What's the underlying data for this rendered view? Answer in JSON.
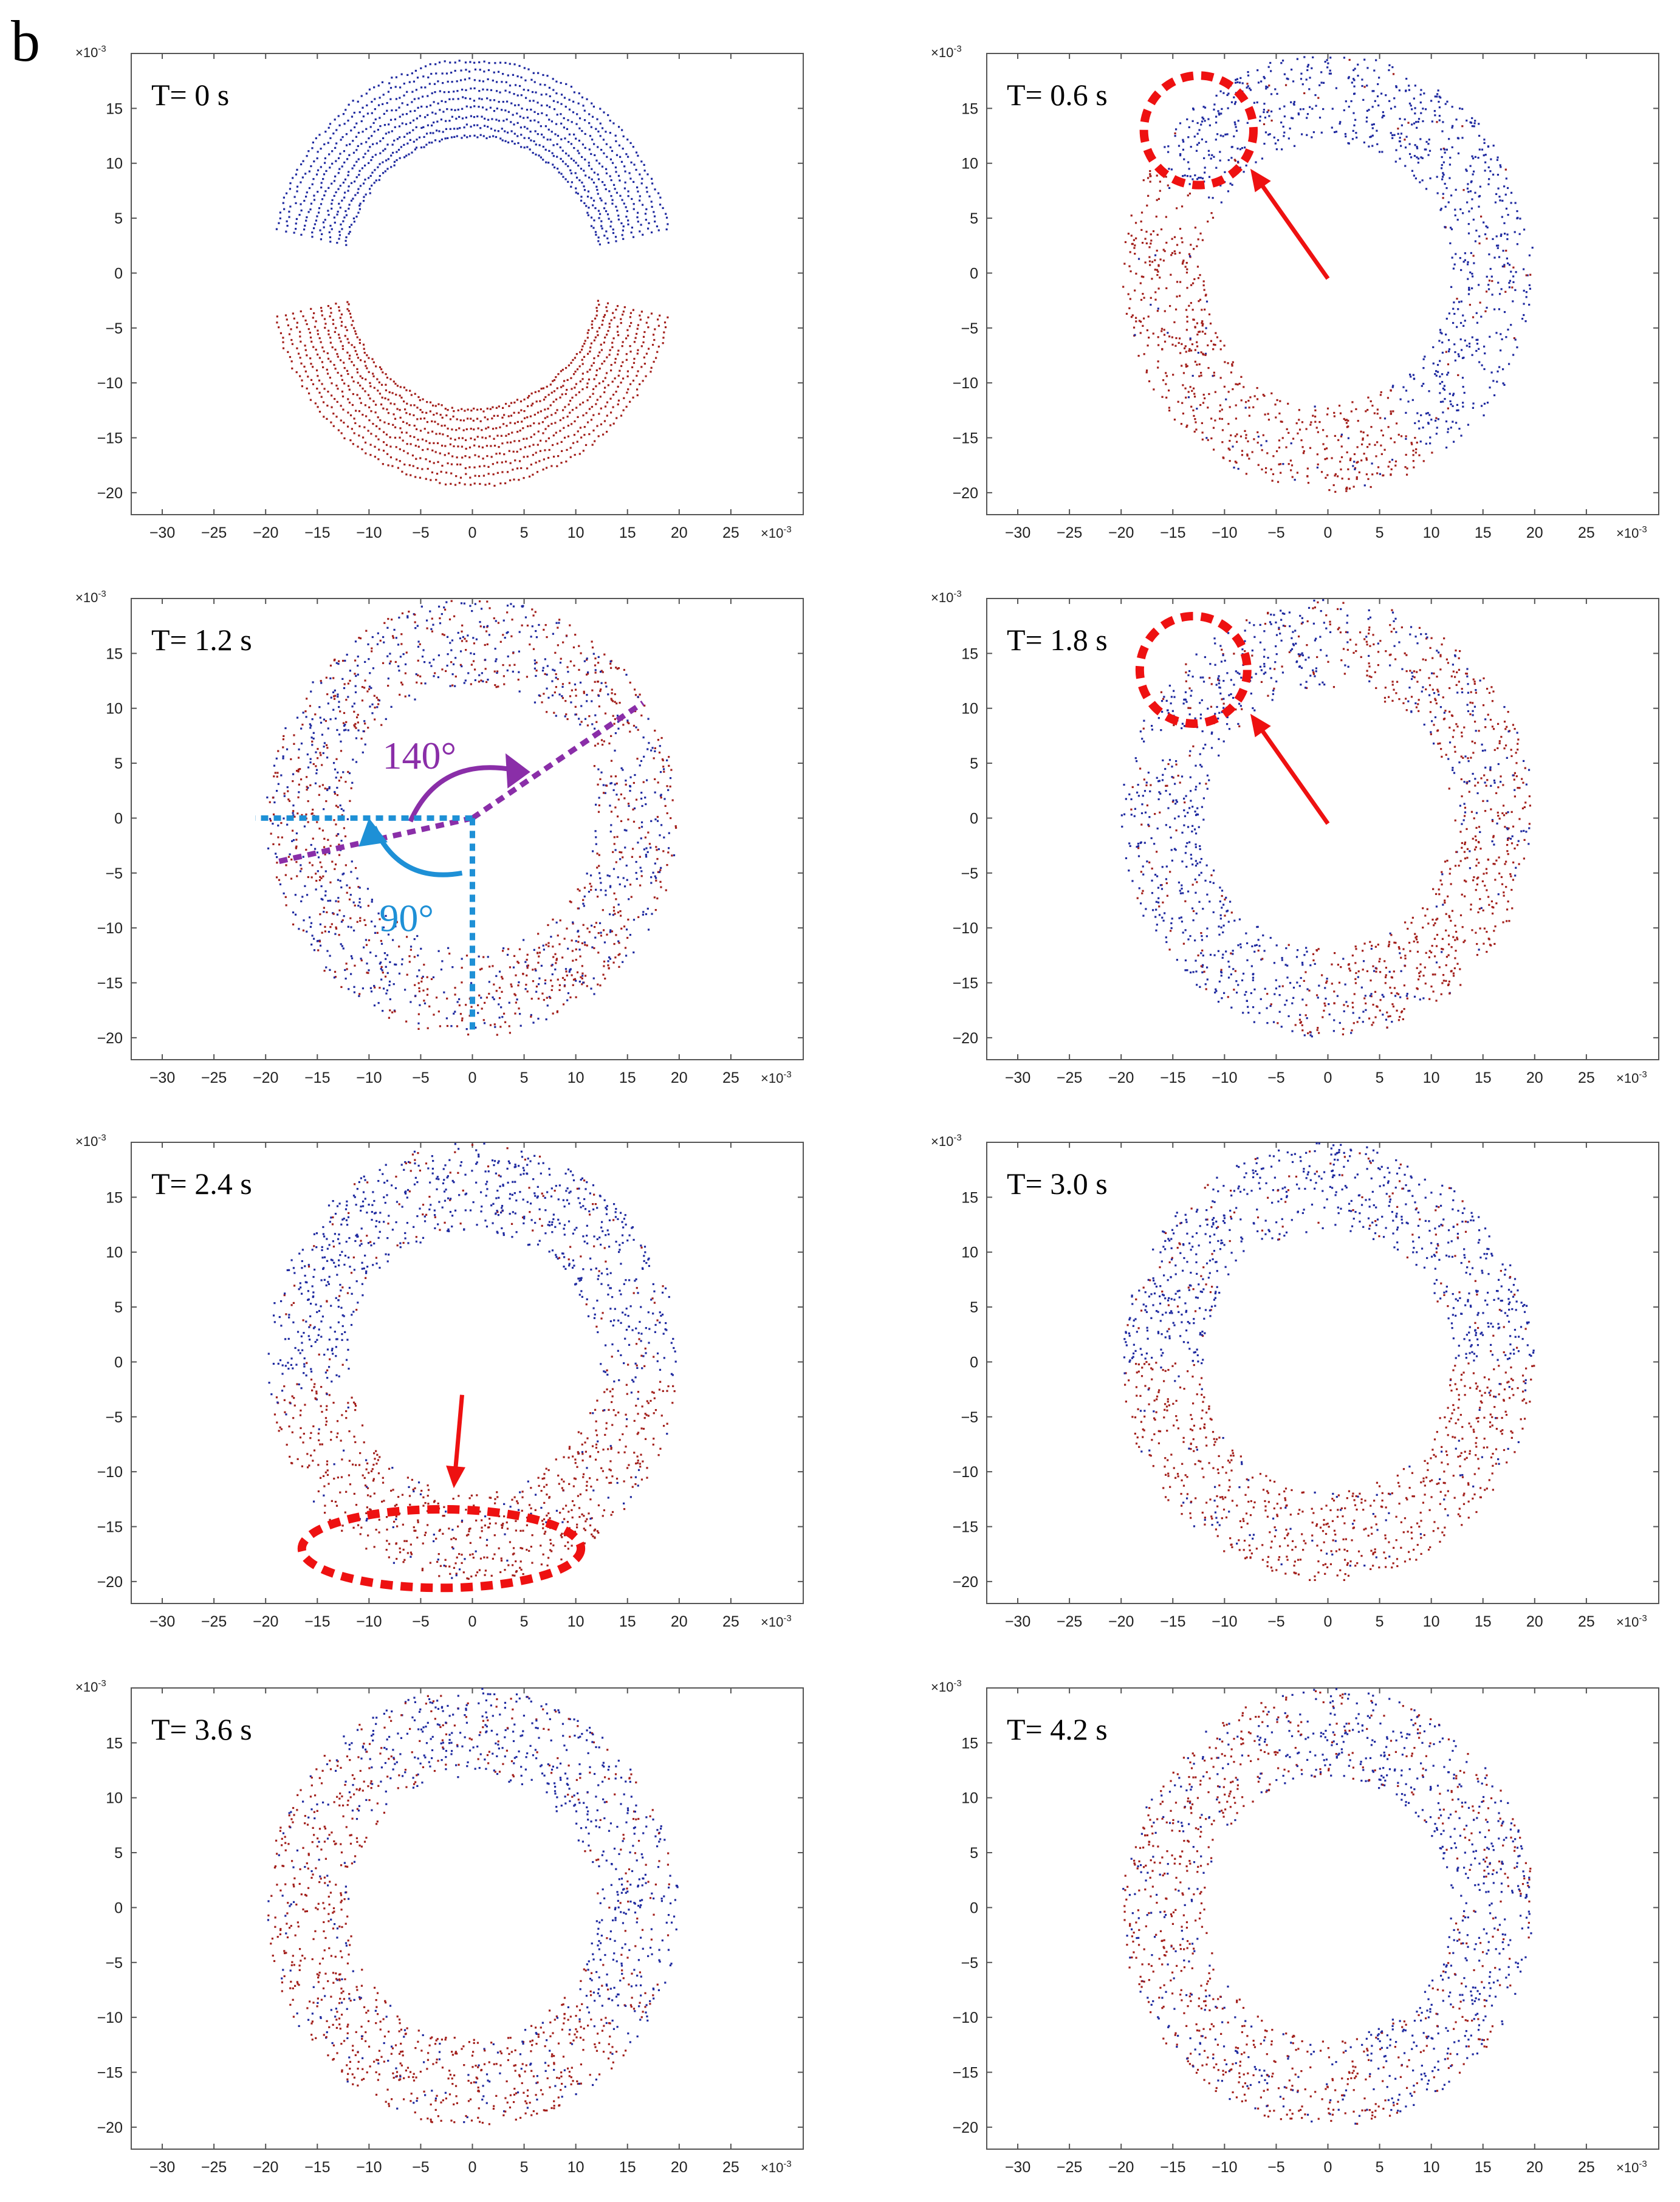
{
  "figure": {
    "panel_letter": "b",
    "axis_exponent": "×10",
    "axis_exponent_power": "-3",
    "colors": {
      "blue_particles": "#1f2aa0",
      "red_particles": "#a3201c",
      "marker_red": "#ee1111",
      "angle_purple": "#8a2ea8",
      "angle_blue": "#1e90d6"
    }
  },
  "chart_data": [
    {
      "type": "scatter",
      "time_label": "T= 0 s",
      "xlim": [
        -33,
        32
      ],
      "ylim": [
        -22,
        20
      ],
      "xticks": [
        -30,
        -25,
        -20,
        -15,
        -10,
        -5,
        0,
        5,
        10,
        15,
        20,
        25
      ],
      "yticks": [
        -20,
        -15,
        -10,
        -5,
        0,
        5,
        10,
        15
      ],
      "series": [
        {
          "color": "blue",
          "region": "upper crescent, x from -20 to 20, y from 3.5 to 19.5"
        },
        {
          "color": "red",
          "region": "lower crescent, x from -20 to 20, y from -19.5 to -3.5"
        }
      ],
      "annotations": []
    },
    {
      "type": "scatter",
      "time_label": "T= 0.6 s",
      "xlim": [
        -33,
        32
      ],
      "ylim": [
        -22,
        20
      ],
      "xticks": [
        -30,
        -25,
        -20,
        -15,
        -10,
        -5,
        0,
        5,
        10,
        15,
        20,
        25
      ],
      "yticks": [
        -20,
        -15,
        -10,
        -5,
        0,
        5,
        10,
        15
      ],
      "series": [
        {
          "color": "blue",
          "region": "ring band r 12 to 20, top and right side"
        },
        {
          "color": "red",
          "region": "ring band r 12 to 20, left and bottom side"
        }
      ],
      "annotations": [
        {
          "kind": "dashed-circle",
          "center": [
            -12.5,
            13
          ],
          "radius": 5.3
        },
        {
          "kind": "arrow",
          "from": [
            0,
            -0.5
          ],
          "to": [
            -7.5,
            9.5
          ]
        }
      ]
    },
    {
      "type": "scatter",
      "time_label": "T= 1.2 s",
      "xlim": [
        -33,
        32
      ],
      "ylim": [
        -22,
        20
      ],
      "xticks": [
        -30,
        -25,
        -20,
        -15,
        -10,
        -5,
        0,
        5,
        10,
        15,
        20,
        25
      ],
      "yticks": [
        -20,
        -15,
        -10,
        -5,
        0,
        5,
        10,
        15
      ],
      "series": [
        {
          "color": "blue",
          "region": "ring band r 12 to 20, mixed"
        },
        {
          "color": "red",
          "region": "ring band r 12 to 20, mixed"
        }
      ],
      "annotations": [
        {
          "kind": "angle",
          "label": "140°",
          "color": "purple"
        },
        {
          "kind": "angle",
          "label": "90°",
          "color": "blue"
        }
      ]
    },
    {
      "type": "scatter",
      "time_label": "T= 1.8 s",
      "xlim": [
        -33,
        32
      ],
      "ylim": [
        -22,
        20
      ],
      "xticks": [
        -30,
        -25,
        -20,
        -15,
        -10,
        -5,
        0,
        5,
        10,
        15,
        20,
        25
      ],
      "yticks": [
        -20,
        -15,
        -10,
        -5,
        0,
        5,
        10,
        15
      ],
      "series": [
        {
          "color": "blue",
          "region": "ring band, left and bottom"
        },
        {
          "color": "red",
          "region": "ring band, right side"
        }
      ],
      "annotations": [
        {
          "kind": "dashed-circle",
          "center": [
            -13,
            13.5
          ],
          "radius": 5.2
        },
        {
          "kind": "arrow",
          "from": [
            0,
            -0.5
          ],
          "to": [
            -7.5,
            9.5
          ]
        }
      ]
    },
    {
      "type": "scatter",
      "time_label": "T= 2.4 s",
      "xlim": [
        -33,
        32
      ],
      "ylim": [
        -22,
        20
      ],
      "xticks": [
        -30,
        -25,
        -20,
        -15,
        -10,
        -5,
        0,
        5,
        10,
        15,
        20,
        25
      ],
      "yticks": [
        -20,
        -15,
        -10,
        -5,
        0,
        5,
        10,
        15
      ],
      "series": [
        {
          "color": "blue",
          "region": "ring band, top half"
        },
        {
          "color": "red",
          "region": "ring band, bottom half"
        }
      ],
      "annotations": [
        {
          "kind": "dashed-ellipse",
          "center": [
            -3,
            -17
          ],
          "rx": 13.5,
          "ry": 3.8
        },
        {
          "kind": "arrow",
          "from": [
            -1,
            -3
          ],
          "to": [
            -1.8,
            -11.5
          ]
        }
      ]
    },
    {
      "type": "scatter",
      "time_label": "T= 3.0 s",
      "xlim": [
        -33,
        32
      ],
      "ylim": [
        -22,
        20
      ],
      "xticks": [
        -30,
        -25,
        -20,
        -15,
        -10,
        -5,
        0,
        5,
        10,
        15,
        20,
        25
      ],
      "yticks": [
        -20,
        -15,
        -10,
        -5,
        0,
        5,
        10,
        15
      ],
      "series": [
        {
          "color": "blue",
          "region": "ring band, top half"
        },
        {
          "color": "red",
          "region": "ring band, bottom half"
        }
      ],
      "annotations": []
    },
    {
      "type": "scatter",
      "time_label": "T= 3.6 s",
      "xlim": [
        -33,
        32
      ],
      "ylim": [
        -22,
        20
      ],
      "xticks": [
        -30,
        -25,
        -20,
        -15,
        -10,
        -5,
        0,
        5,
        10,
        15,
        20,
        25
      ],
      "yticks": [
        -20,
        -15,
        -10,
        -5,
        0,
        5,
        10,
        15
      ],
      "series": [
        {
          "color": "blue",
          "region": "ring band, mixed"
        },
        {
          "color": "red",
          "region": "ring band, mixed"
        }
      ],
      "annotations": []
    },
    {
      "type": "scatter",
      "time_label": "T= 4.2 s",
      "xlim": [
        -33,
        32
      ],
      "ylim": [
        -22,
        20
      ],
      "xticks": [
        -30,
        -25,
        -20,
        -15,
        -10,
        -5,
        0,
        5,
        10,
        15,
        20,
        25
      ],
      "yticks": [
        -20,
        -15,
        -10,
        -5,
        0,
        5,
        10,
        15
      ],
      "series": [
        {
          "color": "blue",
          "region": "ring band, mixed"
        },
        {
          "color": "red",
          "region": "ring band, mixed"
        }
      ],
      "annotations": []
    }
  ]
}
